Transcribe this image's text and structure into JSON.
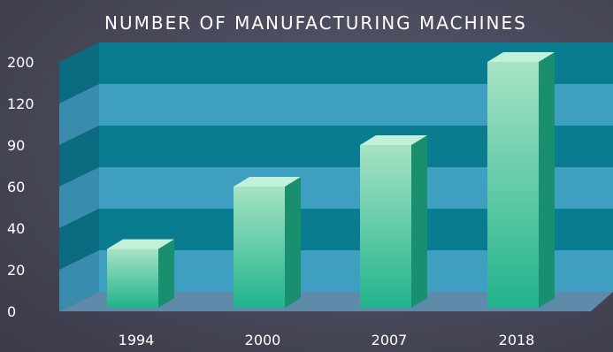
{
  "chart_data": {
    "type": "bar",
    "title": "NUMBER OF MANUFACTURING MACHINES",
    "categories": [
      "1994",
      "2000",
      "2007",
      "2018"
    ],
    "values": [
      30,
      60,
      90,
      200
    ],
    "y_ticks": [
      "0",
      "20",
      "40",
      "60",
      "90",
      "120",
      "200"
    ],
    "xlabel": "",
    "ylabel": "",
    "grid": true,
    "style": "3d-bar",
    "colors": {
      "bar_front_top": "#a6e3c4",
      "bar_front_bottom": "#22b38c",
      "bar_side": "#1a8f70",
      "bar_top": "#c2f0d8",
      "band_dark": "#0a7c90",
      "band_light": "#3e9fc0",
      "floor": "#5f8aaa"
    }
  }
}
